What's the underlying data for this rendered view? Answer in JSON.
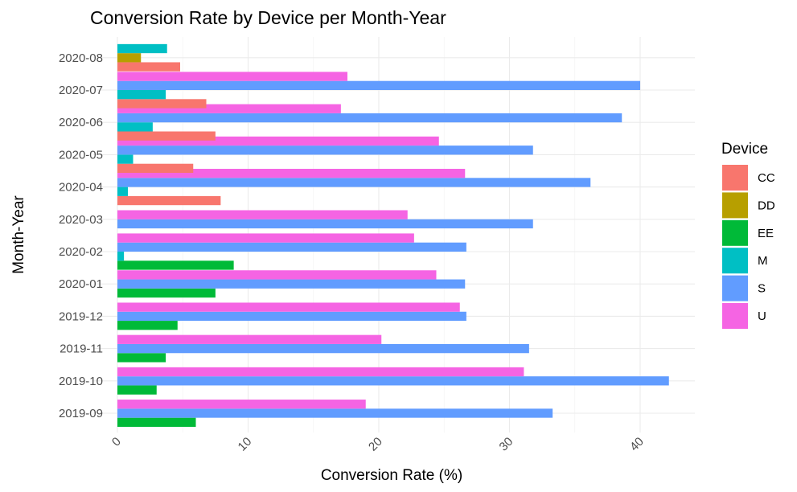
{
  "chart_data": {
    "type": "bar",
    "orientation": "horizontal",
    "title": "Conversion Rate by Device per Month-Year",
    "xlabel": "Conversion Rate (%)",
    "ylabel": "Month-Year",
    "xlim": [
      0,
      44
    ],
    "xticks": [
      "0",
      "10",
      "20",
      "30",
      "40"
    ],
    "grid": true,
    "legend": {
      "title": "Device",
      "position": "right"
    },
    "categories": [
      "2019-09",
      "2019-10",
      "2019-11",
      "2019-12",
      "2020-01",
      "2020-02",
      "2020-03",
      "2020-04",
      "2020-05",
      "2020-06",
      "2020-07",
      "2020-08"
    ],
    "series": [
      {
        "name": "CC",
        "color": "#F8766D",
        "values": [
          null,
          null,
          null,
          null,
          null,
          null,
          null,
          7.9,
          5.8,
          7.5,
          6.8,
          4.8
        ]
      },
      {
        "name": "DD",
        "color": "#B79F00",
        "values": [
          null,
          null,
          null,
          null,
          null,
          null,
          null,
          null,
          null,
          null,
          null,
          1.8
        ]
      },
      {
        "name": "EE",
        "color": "#00BA38",
        "values": [
          6.0,
          3.0,
          3.7,
          4.6,
          7.5,
          8.9,
          null,
          null,
          null,
          null,
          null,
          null
        ]
      },
      {
        "name": "M",
        "color": "#00BFC4",
        "values": [
          null,
          null,
          null,
          null,
          null,
          0.5,
          null,
          0.8,
          1.2,
          2.7,
          3.7,
          3.8
        ]
      },
      {
        "name": "S",
        "color": "#619CFF",
        "values": [
          33.3,
          42.2,
          31.5,
          26.7,
          26.6,
          26.7,
          31.8,
          36.2,
          31.8,
          38.6,
          40.0,
          null
        ]
      },
      {
        "name": "U",
        "color": "#F564E3",
        "values": [
          19.0,
          31.1,
          20.2,
          26.2,
          24.4,
          22.7,
          22.2,
          26.6,
          24.6,
          17.1,
          17.6,
          null
        ]
      }
    ]
  }
}
